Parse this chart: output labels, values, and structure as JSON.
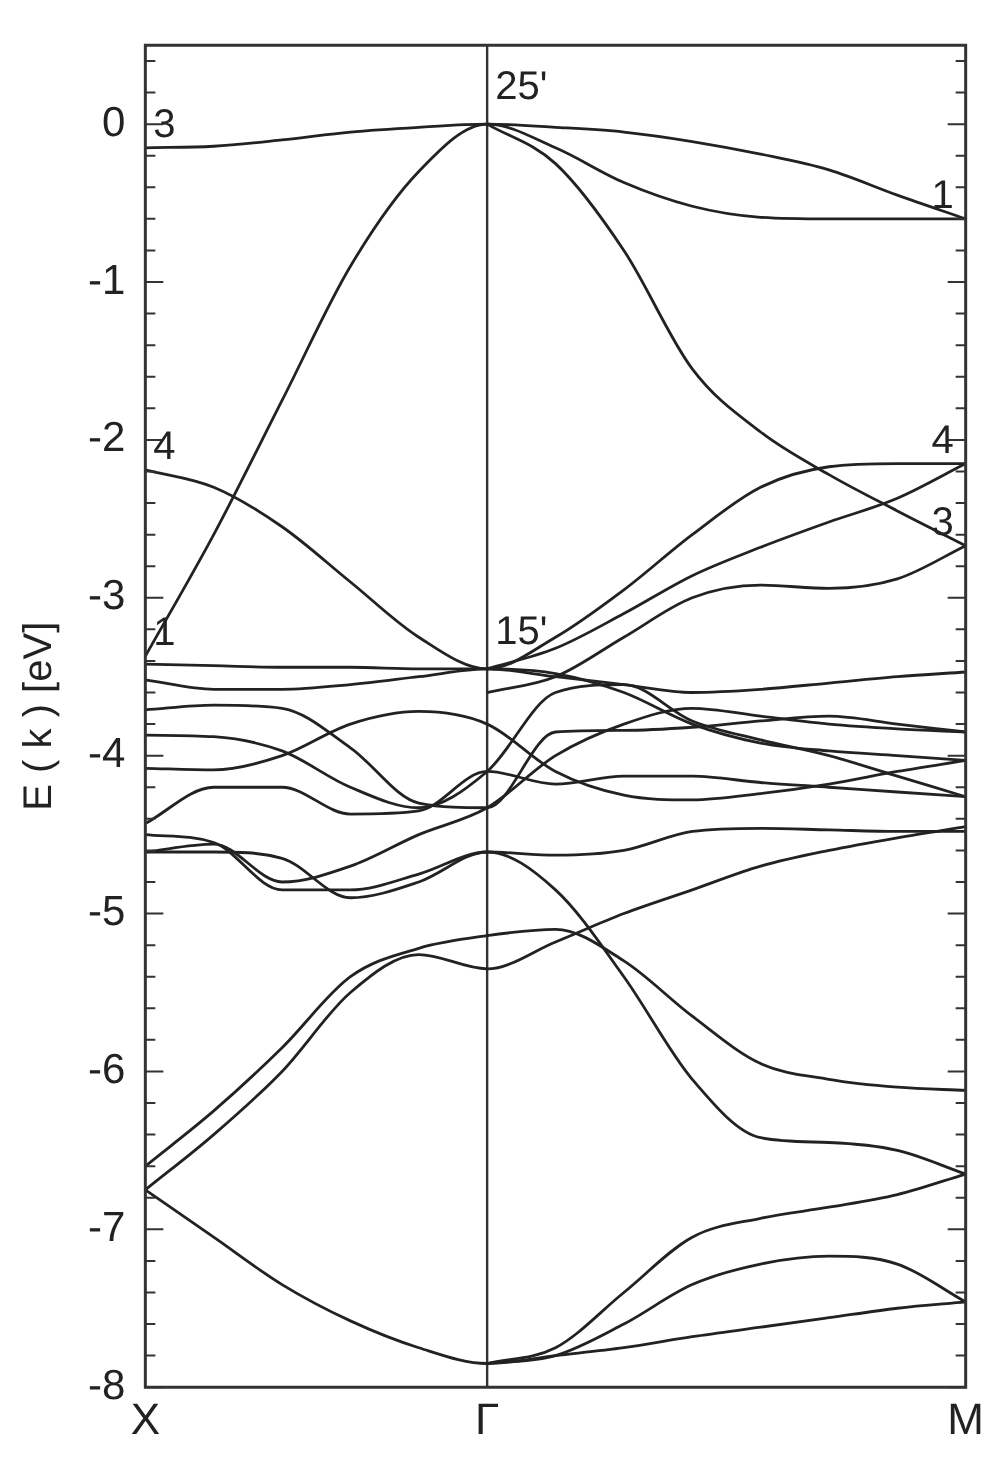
{
  "chart_data": {
    "type": "line",
    "ylabel": "E ( k ) [eV]",
    "categories": [
      "X",
      null,
      null,
      null,
      null,
      "Γ",
      null,
      null,
      null,
      null,
      null,
      null,
      "M"
    ],
    "ylim": [
      -8,
      0.5
    ],
    "yticks": [
      {
        "value": 0.4,
        "label": null
      },
      {
        "value": 0.2,
        "label": null
      },
      0,
      {
        "value": -0.2,
        "label": null
      },
      {
        "value": -0.4,
        "label": null
      },
      {
        "value": -0.6,
        "label": null
      },
      {
        "value": -0.8,
        "label": null
      },
      -1,
      {
        "value": -1.2,
        "label": null
      },
      {
        "value": -1.4,
        "label": null
      },
      {
        "value": -1.6,
        "label": null
      },
      {
        "value": -1.8,
        "label": null
      },
      -2,
      {
        "value": -2.2,
        "label": null
      },
      {
        "value": -2.4,
        "label": null
      },
      {
        "value": -2.6,
        "label": null
      },
      {
        "value": -2.8,
        "label": null
      },
      -3,
      {
        "value": -3.2,
        "label": null
      },
      {
        "value": -3.4,
        "label": null
      },
      {
        "value": -3.6,
        "label": null
      },
      {
        "value": -3.8,
        "label": null
      },
      -4,
      {
        "value": -4.2,
        "label": null
      },
      {
        "value": -4.4,
        "label": null
      },
      {
        "value": -4.6,
        "label": null
      },
      {
        "value": -4.8,
        "label": null
      },
      -5,
      {
        "value": -5.2,
        "label": null
      },
      {
        "value": -5.4,
        "label": null
      },
      {
        "value": -5.6,
        "label": null
      },
      {
        "value": -5.8,
        "label": null
      },
      -6,
      {
        "value": -6.2,
        "label": null
      },
      {
        "value": -6.4,
        "label": null
      },
      {
        "value": -6.6,
        "label": null
      },
      {
        "value": -6.8,
        "label": null
      },
      -7,
      {
        "value": -7.2,
        "label": null
      },
      {
        "value": -7.4,
        "label": null
      },
      {
        "value": -7.6,
        "label": null
      },
      {
        "value": -7.8,
        "label": null
      },
      -8
    ],
    "grid": false,
    "legend": false,
    "marker": "none",
    "line_style": "solid",
    "ref_lines": [
      {
        "axis": "x",
        "value": "Γ",
        "label": null,
        "color": "#333333"
      }
    ],
    "annotations": [
      {
        "text": "3",
        "x": "X",
        "y": -0.15
      },
      {
        "text": "25'",
        "x": "Γ",
        "y": 0
      },
      {
        "text": "1",
        "x": "M",
        "y": -0.6
      },
      {
        "text": "4",
        "x": "X",
        "y": -2.19
      },
      {
        "text": "4",
        "x": "M",
        "y": -2.15
      },
      {
        "text": "3",
        "x": "M",
        "y": -2.67
      },
      {
        "text": "15'",
        "x": "Γ",
        "y": -3.45
      },
      {
        "text": "1",
        "x": "X",
        "y": -3.37
      }
    ],
    "series": [
      {
        "color": "#222222",
        "values": [
          -0.15,
          -0.14,
          -0.1,
          -0.05,
          -0.02,
          0,
          -0.02,
          -0.05,
          -0.11,
          -0.19,
          -0.29,
          -0.45,
          -0.6
        ]
      },
      {
        "color": "#222222",
        "values": [
          -3.37,
          -2.6,
          -1.75,
          -0.9,
          -0.3,
          0,
          -0.15,
          -0.37,
          -0.52,
          -0.59,
          -0.6,
          -0.6,
          -0.6
        ]
      },
      {
        "color": "#222222",
        "values": [
          -2.19,
          -2.3,
          -2.55,
          -2.9,
          -3.25,
          -3.45,
          -3.25,
          -2.95,
          -2.6,
          -2.3,
          -2.17,
          -2.15,
          -2.15
        ]
      },
      {
        "color": "#222222",
        "values": [
          null,
          null,
          null,
          null,
          null,
          0,
          -0.25,
          -0.8,
          -1.55,
          -1.95,
          -2.22,
          -2.45,
          -2.67
        ]
      },
      {
        "color": "#222222",
        "values": [
          null,
          null,
          null,
          null,
          null,
          -3.45,
          -3.32,
          -3.1,
          -2.86,
          -2.68,
          -2.52,
          -2.37,
          -2.15
        ]
      },
      {
        "color": "#222222",
        "values": [
          null,
          null,
          null,
          null,
          null,
          -3.6,
          -3.5,
          -3.25,
          -3,
          -2.92,
          -2.94,
          -2.88,
          -2.67
        ]
      },
      {
        "color": "#222222",
        "values": [
          -3.42,
          -3.43,
          -3.44,
          -3.44,
          -3.45,
          -3.45,
          -3.5,
          -3.55,
          -3.6,
          -3.58,
          -3.54,
          -3.5,
          -3.47
        ]
      },
      {
        "color": "#222222",
        "values": [
          -3.52,
          -3.58,
          -3.58,
          -3.55,
          -3.5,
          -3.45,
          -3.48,
          -3.6,
          -3.8,
          -3.92,
          -3.97,
          -4,
          -4.03
        ]
      },
      {
        "color": "#222222",
        "values": [
          -3.71,
          -3.68,
          -3.7,
          -3.95,
          -4.3,
          -4.33,
          -3.85,
          -3.84,
          -3.82,
          -3.78,
          -3.75,
          -3.8,
          -3.85
        ]
      },
      {
        "color": "#222222",
        "values": [
          -3.87,
          -3.88,
          -3.97,
          -4.2,
          -4.33,
          -4.1,
          -3.6,
          -3.55,
          -3.78,
          -3.9,
          -4,
          -4.13,
          -4.26
        ]
      },
      {
        "color": "#222222",
        "values": [
          -4.08,
          -4.09,
          -4,
          -3.8,
          -3.72,
          -3.8,
          -4.1,
          -4.25,
          -4.28,
          -4.24,
          -4.18,
          -4.1,
          -4.03
        ]
      },
      {
        "color": "#222222",
        "values": [
          -4.43,
          -4.2,
          -4.2,
          -4.37,
          -4.35,
          -4.1,
          -4.18,
          -4.13,
          -4.13,
          -4.17,
          -4.2,
          -4.23,
          -4.26
        ]
      },
      {
        "color": "#222222",
        "values": [
          -4.5,
          -4.55,
          -4.85,
          -4.85,
          -4.75,
          -4.61,
          -4.63,
          -4.6,
          -4.48,
          -4.46,
          -4.47,
          -4.48,
          -4.48
        ]
      },
      {
        "color": "#222222",
        "values": [
          -4.61,
          -4.61,
          -4.65,
          -4.9,
          -4.8,
          -4.61,
          -4.85,
          -5.4,
          -6.05,
          -6.42,
          -6.45,
          -6.5,
          -6.65
        ]
      },
      {
        "color": "#222222",
        "values": [
          -4.61,
          -4.56,
          -4.8,
          -4.7,
          -4.5,
          -4.33,
          -4,
          -3.8,
          -3.7,
          -3.75,
          -3.8,
          -3.83,
          -3.85
        ]
      },
      {
        "color": "#222222",
        "values": [
          -6.6,
          -6.25,
          -5.85,
          -5.4,
          -5.22,
          -5.14,
          -5.1,
          -5.3,
          -5.65,
          -5.95,
          -6.05,
          -6.1,
          -6.12
        ]
      },
      {
        "color": "#222222",
        "values": [
          -6.75,
          -6.4,
          -6,
          -5.5,
          -5.26,
          -5.35,
          -5.18,
          -5,
          -4.85,
          -4.7,
          -4.6,
          -4.52,
          -4.45
        ]
      },
      {
        "color": "#222222",
        "values": [
          -6.75,
          -7.05,
          -7.35,
          -7.58,
          -7.75,
          -7.85,
          -7.8,
          -7.75,
          -7.68,
          -7.62,
          -7.56,
          -7.5,
          -7.46
        ]
      },
      {
        "color": "#222222",
        "values": [
          null,
          null,
          null,
          null,
          null,
          -7.85,
          -7.8,
          -7.6,
          -7.35,
          -7.22,
          -7.17,
          -7.22,
          -7.46
        ]
      },
      {
        "color": "#222222",
        "values": [
          null,
          null,
          null,
          null,
          null,
          -7.85,
          -7.75,
          -7.4,
          -7.05,
          -6.93,
          -6.86,
          -6.78,
          -6.65
        ]
      }
    ]
  }
}
